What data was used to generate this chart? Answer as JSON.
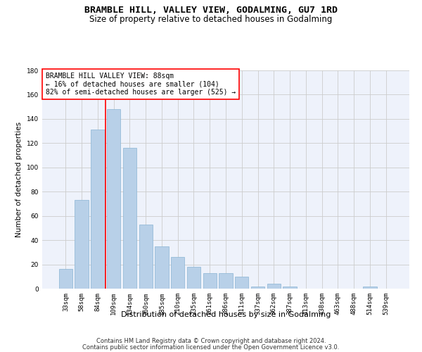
{
  "title": "BRAMBLE HILL, VALLEY VIEW, GODALMING, GU7 1RD",
  "subtitle": "Size of property relative to detached houses in Godalming",
  "xlabel": "Distribution of detached houses by size in Godalming",
  "ylabel": "Number of detached properties",
  "categories": [
    "33sqm",
    "58sqm",
    "84sqm",
    "109sqm",
    "134sqm",
    "160sqm",
    "185sqm",
    "210sqm",
    "235sqm",
    "261sqm",
    "286sqm",
    "311sqm",
    "337sqm",
    "362sqm",
    "387sqm",
    "413sqm",
    "438sqm",
    "463sqm",
    "488sqm",
    "514sqm",
    "539sqm"
  ],
  "values": [
    16,
    73,
    131,
    148,
    116,
    53,
    35,
    26,
    18,
    13,
    13,
    10,
    2,
    4,
    2,
    0,
    0,
    0,
    0,
    2,
    0
  ],
  "bar_color": "#b8d0e8",
  "bar_edge_color": "#8ab4d4",
  "vline_x": 2.5,
  "vline_color": "red",
  "vline_linewidth": 1.2,
  "annotation_text": "BRAMBLE HILL VALLEY VIEW: 88sqm\n← 16% of detached houses are smaller (104)\n82% of semi-detached houses are larger (525) →",
  "annotation_box_color": "white",
  "annotation_box_edge": "red",
  "ylim": [
    0,
    180
  ],
  "yticks": [
    0,
    20,
    40,
    60,
    80,
    100,
    120,
    140,
    160,
    180
  ],
  "grid_color": "#cccccc",
  "background_color": "#eef2fb",
  "footer_line1": "Contains HM Land Registry data © Crown copyright and database right 2024.",
  "footer_line2": "Contains public sector information licensed under the Open Government Licence v3.0.",
  "title_fontsize": 9.5,
  "subtitle_fontsize": 8.5,
  "xlabel_fontsize": 8,
  "ylabel_fontsize": 7.5,
  "tick_fontsize": 6.5,
  "annotation_fontsize": 7,
  "footer_fontsize": 6
}
